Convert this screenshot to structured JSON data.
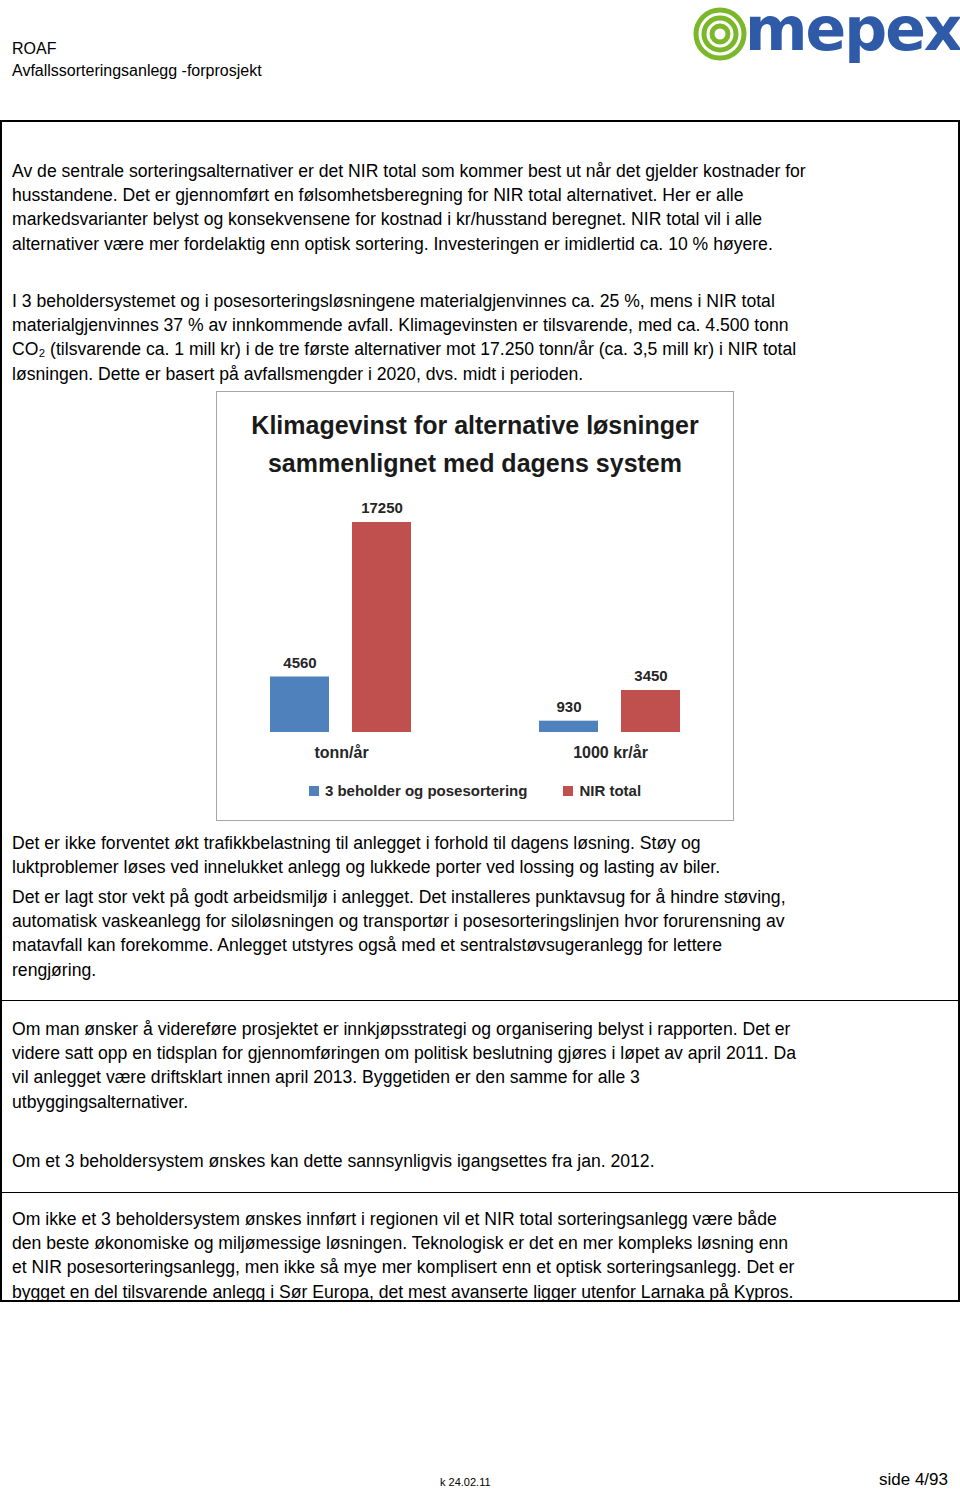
{
  "header": {
    "org": "ROAF",
    "project": "Avfallssorteringsanlegg -forprosjekt",
    "logo": "mepex"
  },
  "sections": [
    {
      "paragraphs": [
        [
          "Av de sentrale sorteringsalternativer er det NIR total som kommer best ut når det gjelder kostnader for",
          "husstandene. Det er gjennomført en følsomhetsberegning for NIR total alternativet. Her er alle",
          "markedsvarianter belyst og konsekvensene for kostnad i kr/husstand beregnet. NIR total vil i alle",
          "alternativer være mer fordelaktig enn optisk sortering. Investeringen er imidlertid ca. 10 % høyere."
        ],
        [
          "I 3 beholdersystemet og i posesorteringsløsningene materialgjenvinnes ca. 25 %, mens i NIR total",
          "materialgjenvinnes 37 % av innkommende avfall. Klimagevinsten er tilsvarende, med ca. 4.500 tonn",
          "CO₂ (tilsvarende ca. 1 mill kr) i de tre første alternativer mot 17.250 tonn/år (ca. 3,5 mill kr) i NIR total",
          "løsningen. Dette er basert på avfallsmengder i 2020, dvs. midt i perioden."
        ]
      ]
    },
    {
      "paragraphs": [
        [
          "Det er ikke forventet økt trafikkbelastning til anlegget i forhold til dagens løsning. Støy og",
          "luktproblemer løses ved innelukket anlegg og lukkede porter ved lossing og lasting av biler."
        ],
        [
          "Det er lagt stor vekt på godt arbeidsmiljø i anlegget. Det installeres punktavsug for å hindre støving,",
          "automatisk vaskeanlegg for siloløsningen og transportør i posesorteringslinjen hvor forurensning av",
          "matavfall kan forekomme. Anlegget utstyres også med et sentralstøvsugeranlegg for lettere",
          "rengjøring."
        ]
      ]
    },
    {
      "paragraphs": [
        [
          "Om man ønsker å videreføre prosjektet er innkjøpsstrategi og organisering belyst i rapporten. Det er",
          "videre satt opp en tidsplan for gjennomføringen om politisk beslutning gjøres i løpet av april 2011. Da",
          "vil anlegget være driftsklart innen april 2013. Byggetiden er den samme for alle 3",
          "utbyggingsalternativer."
        ],
        [
          "Om et 3 beholdersystem ønskes kan dette sannsynligvis igangsettes fra jan. 2012."
        ]
      ]
    },
    {
      "paragraphs": [
        [
          "Om ikke et 3 beholdersystem ønskes innført i regionen vil et NIR total sorteringsanlegg være både",
          "den beste økonomiske og miljømessige løsningen. Teknologisk er det en mer kompleks løsning enn",
          "et NIR posesorteringsanlegg, men ikke så mye mer komplisert enn et optisk sorteringsanlegg. Det er",
          "bygget en del tilsvarende anlegg i Sør Europa, det mest avanserte ligger utenfor Larnaka på Kypros."
        ]
      ]
    }
  ],
  "chart_data": {
    "type": "bar",
    "title": [
      "Klimagevinst for alternative løsninger",
      "sammenlignet med dagens system"
    ],
    "categories": [
      "tonn/år",
      "1000 kr/år"
    ],
    "series": [
      {
        "name": "3 beholder og posesortering",
        "color": "#4f81bd",
        "values": [
          4560,
          930
        ]
      },
      {
        "name": "NIR total",
        "color": "#c0504d",
        "values": [
          17250,
          3450
        ]
      }
    ],
    "ylim": [
      0,
      17250
    ],
    "data_labels": true,
    "tick_labels": "x",
    "legend": "bottom"
  },
  "footer": {
    "date": "k 24.02.11",
    "page": "side 4/93"
  }
}
